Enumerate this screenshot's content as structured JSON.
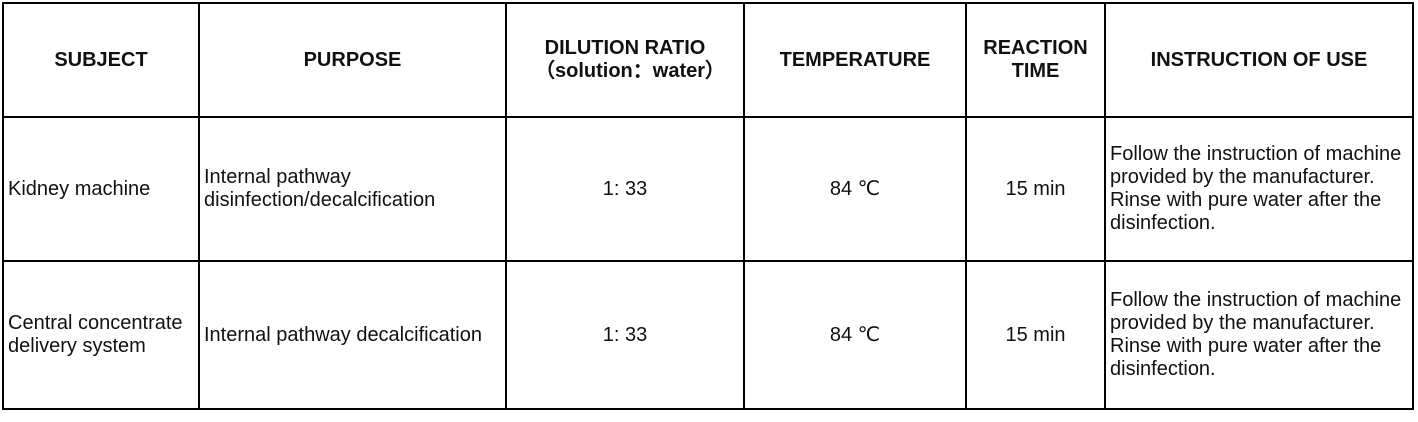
{
  "table": {
    "header": [
      "SUBJECT",
      "PURPOSE",
      "DILUTION RATIO（solution：water）",
      "TEMPERATURE",
      "REACTION TIME",
      "INSTRUCTION OF USE"
    ],
    "rows": [
      [
        "Kidney machine",
        "Internal pathway disinfection/decalcification",
        "1: 33",
        "84 ℃",
        "15 min",
        "Follow the instruction of machine provided by the manufacturer. Rinse with pure water after the disinfection."
      ],
      [
        "Central concentrate delivery system",
        "Internal pathway decalcification",
        "1: 33",
        "84 ℃",
        "15 min",
        "Follow the instruction of machine provided by the manufacturer. Rinse with pure water after the disinfection."
      ]
    ]
  }
}
